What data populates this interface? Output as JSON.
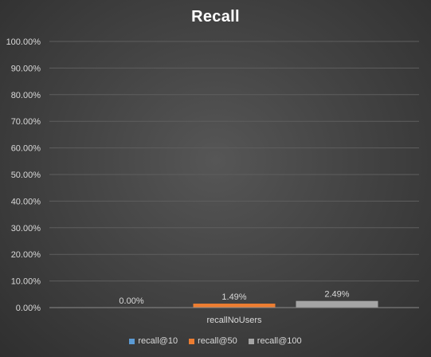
{
  "chart_data": {
    "type": "bar",
    "title": "Recall",
    "xlabel": "",
    "ylabel": "",
    "categories": [
      "recallNoUsers"
    ],
    "series": [
      {
        "name": "recall@10",
        "values": [
          0.0
        ],
        "label": "0.00%",
        "color": "#5b9bd5"
      },
      {
        "name": "recall@50",
        "values": [
          1.49
        ],
        "label": "1.49%",
        "color": "#ed7d31"
      },
      {
        "name": "recall@100",
        "values": [
          2.49
        ],
        "label": "2.49%",
        "color": "#a5a5a5"
      }
    ],
    "ylim": [
      0,
      100
    ],
    "yticks": [
      "0.00%",
      "10.00%",
      "20.00%",
      "30.00%",
      "40.00%",
      "50.00%",
      "60.00%",
      "70.00%",
      "80.00%",
      "90.00%",
      "100.00%"
    ],
    "grid": true,
    "legend": "bottom"
  }
}
